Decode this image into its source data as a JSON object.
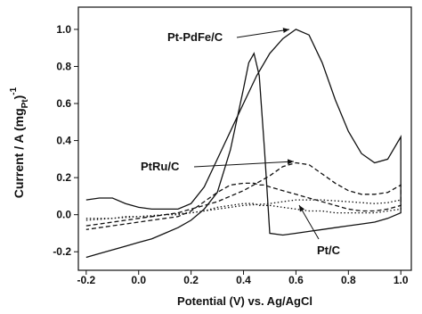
{
  "chart_data": {
    "type": "line",
    "ylabel": [
      "Current / A (mg",
      "Pt",
      ")",
      "-1"
    ],
    "xlabel": "Potential (V) vs. Ag/AgCl",
    "x": [
      -0.2,
      -0.15,
      -0.1,
      -0.05,
      0,
      0.05,
      0.1,
      0.15,
      0.2,
      0.25,
      0.3,
      0.35,
      0.4,
      0.45,
      0.5,
      0.55,
      0.6,
      0.65,
      0.7,
      0.75,
      0.8,
      0.85,
      0.9,
      0.95,
      1.0,
      1.0,
      0.95,
      0.9,
      0.85,
      0.8,
      0.75,
      0.7,
      0.65,
      0.6,
      0.55,
      0.5,
      0.48,
      0.46,
      0.44,
      0.42,
      0.4,
      0.35,
      0.3,
      0.25,
      0.2,
      0.15,
      0.1,
      0.05,
      0,
      -0.05,
      -0.1,
      -0.15,
      -0.2
    ],
    "series": [
      {
        "name": "Pt-PdFe/C",
        "color": "#111111",
        "dash": "solid",
        "values": [
          0.08,
          0.09,
          0.09,
          0.06,
          0.04,
          0.03,
          0.03,
          0.03,
          0.06,
          0.15,
          0.3,
          0.45,
          0.6,
          0.75,
          0.87,
          0.95,
          1.0,
          0.97,
          0.82,
          0.62,
          0.45,
          0.33,
          0.28,
          0.3,
          0.42,
          0.01,
          -0.02,
          -0.04,
          -0.05,
          -0.06,
          -0.07,
          -0.08,
          -0.09,
          -0.1,
          -0.11,
          -0.1,
          0.35,
          0.75,
          0.87,
          0.82,
          0.68,
          0.35,
          0.12,
          0.03,
          -0.03,
          -0.07,
          -0.1,
          -0.13,
          -0.15,
          -0.17,
          -0.19,
          -0.21,
          -0.23
        ]
      },
      {
        "name": "PtRu/C",
        "color": "#111111",
        "dash": "dashed",
        "values": [
          -0.06,
          -0.05,
          -0.04,
          -0.03,
          -0.02,
          -0.01,
          0,
          0.01,
          0.03,
          0.05,
          0.07,
          0.1,
          0.13,
          0.17,
          0.21,
          0.26,
          0.28,
          0.27,
          0.22,
          0.17,
          0.13,
          0.11,
          0.11,
          0.12,
          0.16,
          0.05,
          0.03,
          0.02,
          0.02,
          0.03,
          0.05,
          0.07,
          0.09,
          0.11,
          0.13,
          0.15,
          0.16,
          0.16,
          0.17,
          0.17,
          0.17,
          0.16,
          0.12,
          0.07,
          0.02,
          -0.01,
          -0.02,
          -0.03,
          -0.04,
          -0.05,
          -0.06,
          -0.07,
          -0.08
        ]
      },
      {
        "name": "Pt/C",
        "color": "#111111",
        "dash": "dotted",
        "values": [
          -0.03,
          -0.025,
          -0.02,
          -0.015,
          -0.01,
          -0.005,
          0,
          0.005,
          0.01,
          0.02,
          0.03,
          0.04,
          0.05,
          0.055,
          0.06,
          0.07,
          0.08,
          0.08,
          0.08,
          0.075,
          0.07,
          0.065,
          0.06,
          0.065,
          0.08,
          0.03,
          0.02,
          0.01,
          0.01,
          0.01,
          0.01,
          0.02,
          0.02,
          0.03,
          0.04,
          0.05,
          0.05,
          0.05,
          0.06,
          0.06,
          0.06,
          0.05,
          0.04,
          0.02,
          0.01,
          0,
          0,
          -0.01,
          -0.01,
          -0.01,
          -0.02,
          -0.02,
          -0.02
        ]
      }
    ],
    "xlim": [
      -0.23,
      1.04
    ],
    "ylim": [
      -0.3,
      1.12
    ],
    "xticks": [
      {
        "value": -0.2,
        "label": "-0.2"
      },
      {
        "value": 0,
        "label": "0.0"
      },
      {
        "value": 0.2,
        "label": "0.2"
      },
      {
        "value": 0.4,
        "label": "0.4"
      },
      {
        "value": 0.6,
        "label": "0.6"
      },
      {
        "value": 0.8,
        "label": "0.8"
      },
      {
        "value": 1.0,
        "label": "1.0"
      }
    ],
    "yticks": [
      {
        "value": -0.2,
        "label": "-0.2"
      },
      {
        "value": 0,
        "label": "0.0"
      },
      {
        "value": 0.2,
        "label": "0.2"
      },
      {
        "value": 0.4,
        "label": "0.4"
      },
      {
        "value": 0.6,
        "label": "0.6"
      },
      {
        "value": 0.8,
        "label": "0.8"
      },
      {
        "value": 1.0,
        "label": "1.0"
      }
    ],
    "grid": false
  }
}
